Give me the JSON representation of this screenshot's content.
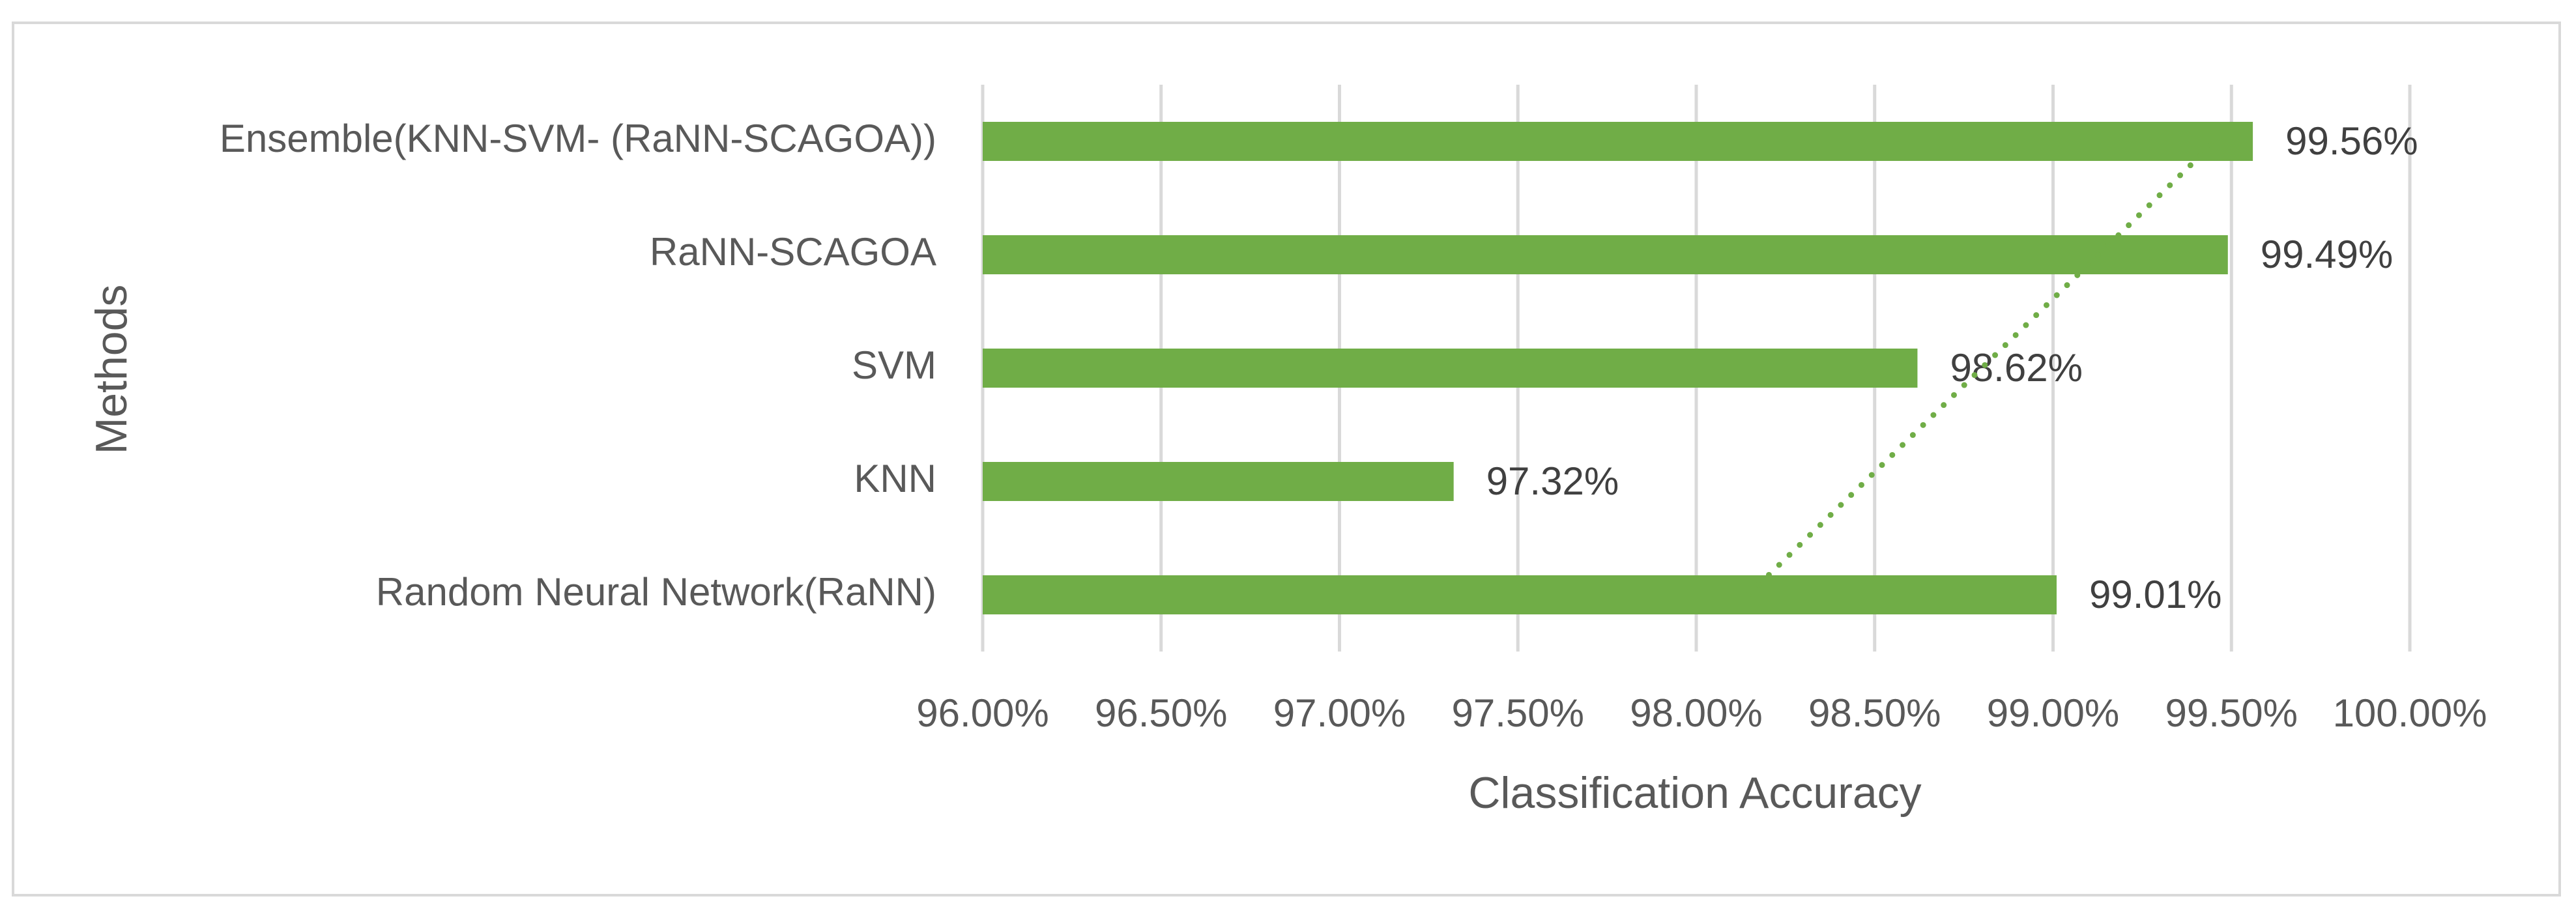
{
  "chart_data": {
    "type": "bar",
    "orientation": "horizontal",
    "x_label": "Classification Accuracy",
    "y_label": "Methods",
    "categories": [
      "Random Neural Network(RaNN)",
      "KNN",
      "SVM",
      "RaNN-SCAGOA",
      "Ensemble(KNN-SVM- (RaNN-SCAGOA))"
    ],
    "values": [
      99.01,
      97.32,
      98.62,
      99.49,
      99.56
    ],
    "value_labels": [
      "99.01%",
      "97.32%",
      "98.62%",
      "99.49%",
      "99.56%"
    ],
    "color": "#70ad47",
    "xlim": [
      96,
      100
    ],
    "xticks": [
      {
        "value": 96,
        "label": "96.00%"
      },
      {
        "value": 96.5,
        "label": "96.50%"
      },
      {
        "value": 97,
        "label": "97.00%"
      },
      {
        "value": 97.5,
        "label": "97.50%"
      },
      {
        "value": 98,
        "label": "98.00%"
      },
      {
        "value": 98.5,
        "label": "98.50%"
      },
      {
        "value": 99,
        "label": "99.00%"
      },
      {
        "value": 99.5,
        "label": "99.50%"
      },
      {
        "value": 100,
        "label": "100.00%"
      }
    ],
    "grid": true,
    "trendline": "linear"
  }
}
